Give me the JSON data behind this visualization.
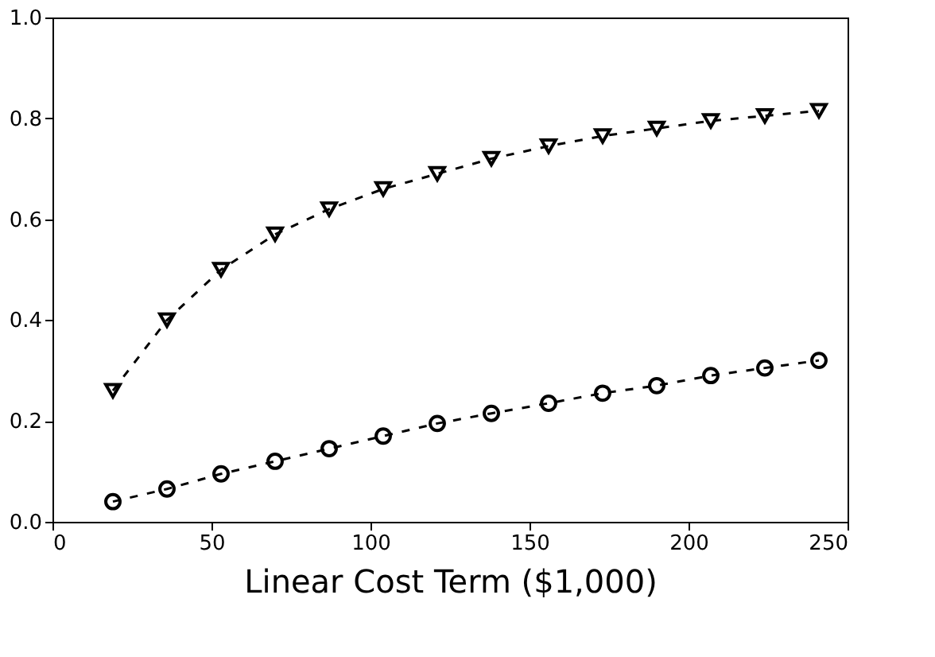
{
  "chart_data": {
    "type": "line",
    "xlabel": "Linear Cost Term ($1,000)",
    "x": [
      19,
      36,
      53,
      70,
      87,
      104,
      121,
      138,
      156,
      173,
      190,
      207,
      224,
      241
    ],
    "series": [
      {
        "color": "#000000",
        "marker": "triangle",
        "line_style": "dashed",
        "values": [
          0.26,
          0.4,
          0.5,
          0.57,
          0.62,
          0.66,
          0.69,
          0.72,
          0.745,
          0.765,
          0.78,
          0.795,
          0.805,
          0.815
        ]
      },
      {
        "color": "#000000",
        "marker": "circle",
        "line_style": "dashed",
        "values": [
          0.04,
          0.065,
          0.095,
          0.12,
          0.145,
          0.17,
          0.195,
          0.215,
          0.235,
          0.255,
          0.27,
          0.29,
          0.305,
          0.32
        ]
      }
    ],
    "xlim": [
      0,
      250
    ],
    "xticks": [
      0,
      50,
      100,
      150,
      200,
      250
    ],
    "ylim": [
      0.0,
      1.0
    ],
    "yticks": [
      {
        "value": 0,
        "label": "0.0"
      },
      {
        "value": 0.2,
        "label": "0.2"
      },
      {
        "value": 0.4,
        "label": "0.4"
      },
      {
        "value": 0.6,
        "label": "0.6"
      },
      {
        "value": 0.8,
        "label": "0.8"
      },
      {
        "value": 1.0,
        "label": "1.0"
      }
    ],
    "grid": false
  }
}
